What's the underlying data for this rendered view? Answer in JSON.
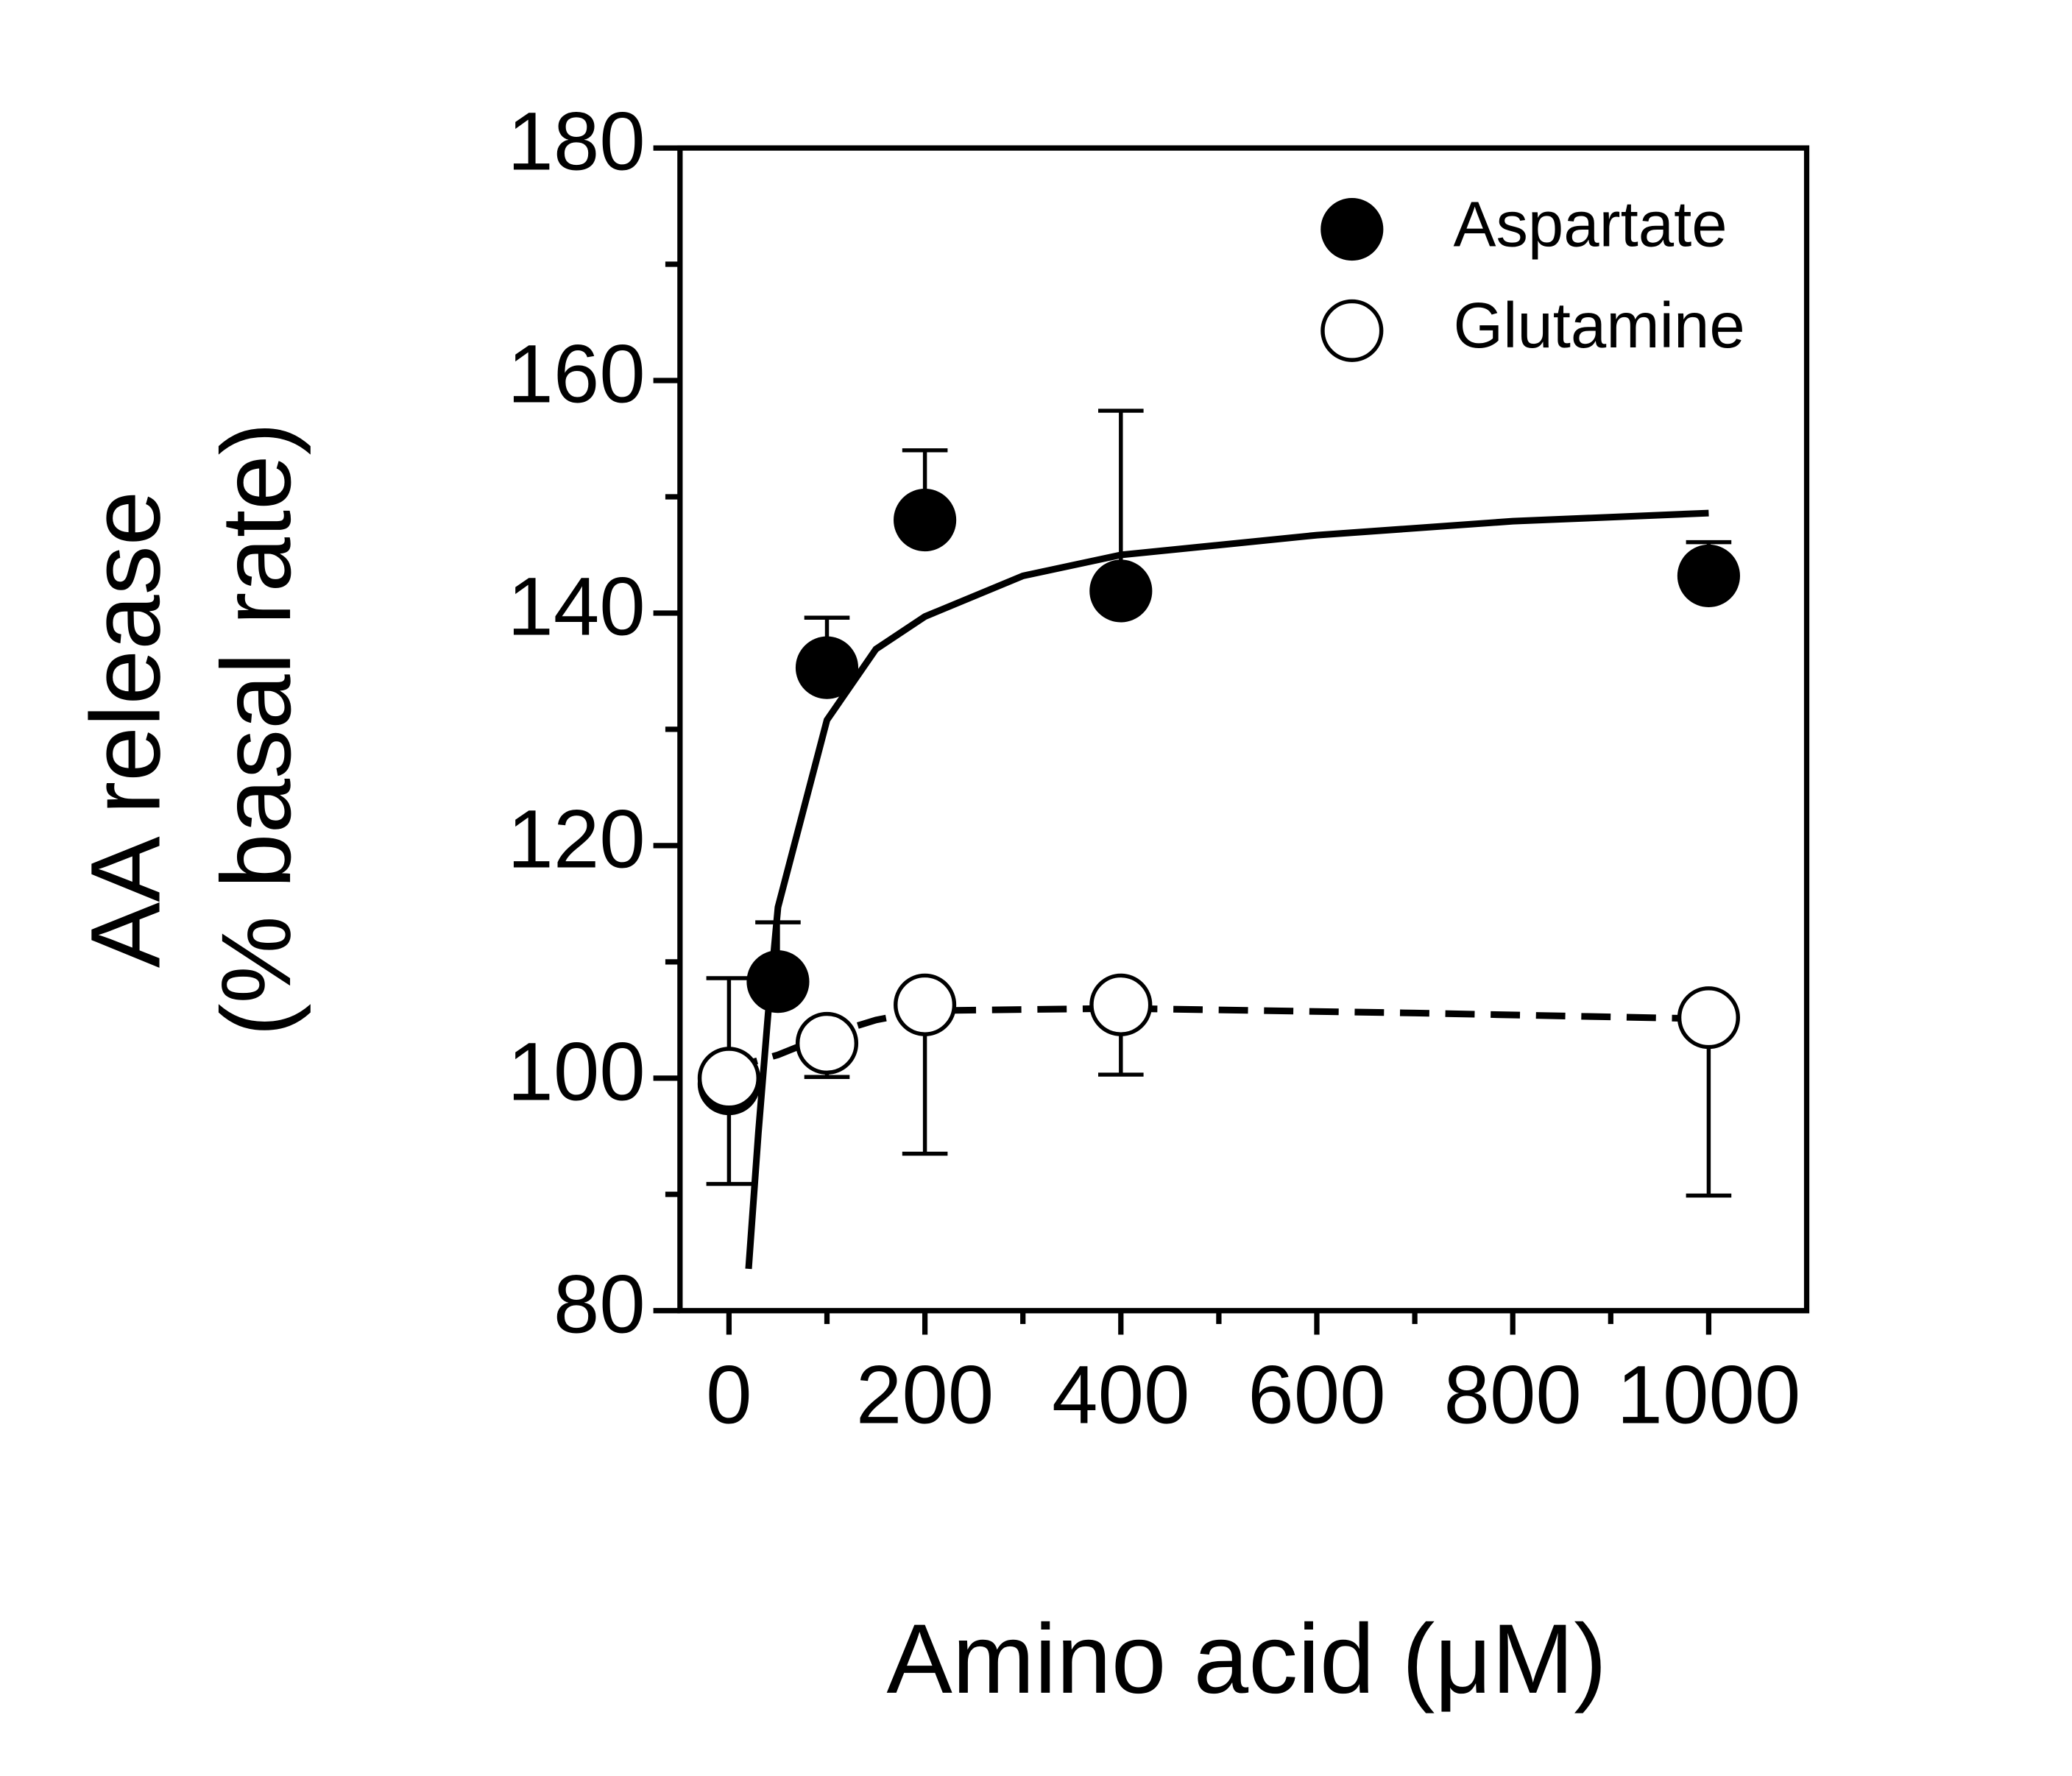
{
  "chart_data": {
    "type": "scatter",
    "xlabel": "Amino acid (μM)",
    "ylabel": [
      "AA release",
      "(% basal rate)"
    ],
    "xlim": [
      -50,
      1100
    ],
    "ylim": [
      80,
      180
    ],
    "xticks": [
      0,
      200,
      400,
      600,
      800,
      1000
    ],
    "xminor_ticks": [
      100,
      300,
      500,
      700,
      900
    ],
    "yticks": [
      80,
      100,
      120,
      140,
      160,
      180
    ],
    "yminor_ticks": [
      90,
      110,
      130,
      150,
      170
    ],
    "legend": "upper right",
    "series": [
      {
        "name": "Aspartate",
        "color": "#000000",
        "marker_fill": "#000000",
        "dashed": false,
        "error_direction": "up",
        "x": [
          0,
          50,
          100,
          200,
          400,
          1000
        ],
        "values": [
          99.5,
          108.3,
          135.3,
          148,
          141.9,
          143.2
        ],
        "errors": [
          9.1,
          5.1,
          4.3,
          6,
          15.5,
          2.9
        ],
        "fit_x": [
          20,
          30,
          40,
          50,
          100,
          150,
          200,
          300,
          400,
          600,
          800,
          1000
        ],
        "fit_values": [
          83.6,
          95.3,
          105.6,
          114.7,
          130.8,
          136.9,
          139.7,
          143.2,
          145,
          146.7,
          147.9,
          148.6
        ]
      },
      {
        "name": "Glutamine",
        "color": "#000000",
        "marker_fill": "#ffffff",
        "dashed": true,
        "error_direction": "down",
        "x": [
          0,
          100,
          200,
          400,
          1000
        ],
        "values": [
          100,
          103,
          106.3,
          106.3,
          105.2
        ],
        "errors": [
          9.1,
          2.9,
          12.8,
          6,
          15.3
        ],
        "fit_x": [
          0,
          50,
          100,
          150,
          200,
          400,
          700,
          1000
        ],
        "fit_values": [
          100.8,
          102,
          103.7,
          105,
          105.8,
          106,
          105.6,
          105.1
        ]
      }
    ]
  }
}
